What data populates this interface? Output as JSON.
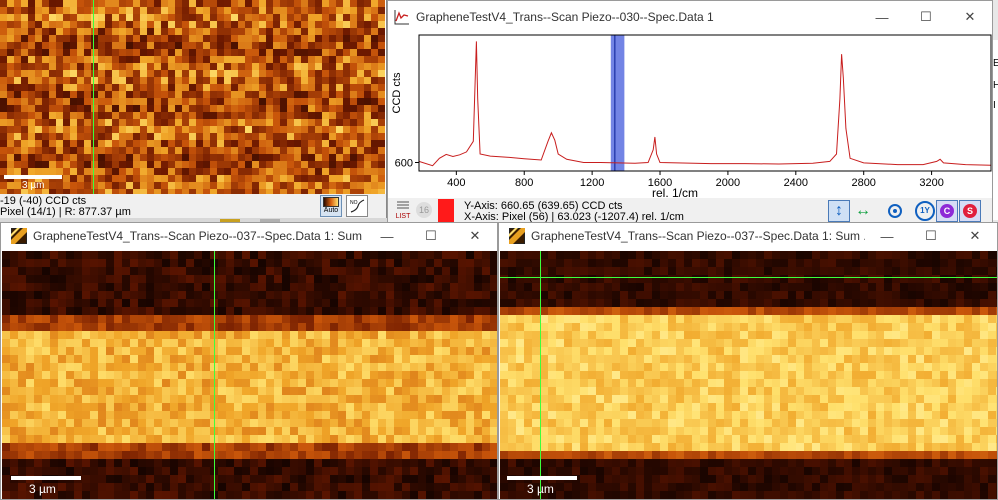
{
  "top_left": {
    "status_line1": "-19 (-40) CCD cts",
    "status_line2": "Pixel (14/1) | R: 877.37 µm",
    "scale_label": "3 µm",
    "auto_label": "Auto"
  },
  "spectrum_window": {
    "title": "GrapheneTestV4_Trans--Scan Piezo--030--Spec.Data 1",
    "btn_minimize": "—",
    "btn_maximize": "☐",
    "btn_close": "✕",
    "y_readout": "Y-Axis: 660.65 (639.65) CCD cts",
    "x_readout": "X-Axis: Pixel (56) | 63.023 (-1207.4) rel. 1/cm",
    "list_label": "LIST",
    "badge_16": "16",
    "btn_1y": "1Y",
    "btn_c": "C",
    "btn_s": "S",
    "colors": {
      "line": "#c81e1e",
      "highlight": "#5b6fe0",
      "marker": "#ff1a1a"
    }
  },
  "chart_data": {
    "type": "line",
    "title": "",
    "xlabel": "rel. 1/cm",
    "ylabel": "CCD cts",
    "xlim": [
      180,
      3550
    ],
    "ylim": [
      560,
      1200
    ],
    "xticks": [
      400,
      800,
      1200,
      1600,
      2000,
      2400,
      2800,
      3200
    ],
    "yticks": [
      600
    ],
    "highlight_band": [
      1310,
      1390
    ],
    "series": [
      {
        "name": "",
        "x": [
          180,
          260,
          300,
          340,
          380,
          420,
          460,
          500,
          510,
          518,
          526,
          540,
          600,
          700,
          800,
          900,
          940,
          960,
          980,
          1000,
          1050,
          1150,
          1250,
          1350,
          1450,
          1530,
          1560,
          1570,
          1580,
          1600,
          1700,
          1900,
          2100,
          2300,
          2500,
          2600,
          2640,
          2660,
          2670,
          2680,
          2695,
          2720,
          2800,
          3000,
          3150,
          3230,
          3250,
          3270,
          3400,
          3550
        ],
        "y": [
          605,
          585,
          620,
          638,
          628,
          636,
          650,
          700,
          960,
          1170,
          900,
          640,
          630,
          625,
          618,
          612,
          700,
          740,
          705,
          640,
          615,
          600,
          600,
          598,
          596,
          600,
          660,
          720,
          640,
          600,
          598,
          595,
          595,
          593,
          596,
          605,
          640,
          900,
          1110,
          1000,
          760,
          620,
          598,
          590,
          590,
          605,
          615,
          598,
          590,
          587
        ]
      }
    ]
  },
  "bottom_left": {
    "title": "GrapheneTestV4_Trans--Scan Piezo--037--Spec.Data 1: Sum ...",
    "btn_minimize": "—",
    "btn_maximize": "☐",
    "btn_close": "✕",
    "scale_label": "3 µm"
  },
  "bottom_right": {
    "title": "GrapheneTestV4_Trans--Scan Piezo--037--Spec.Data 1: Sum ...",
    "btn_minimize": "—",
    "btn_maximize": "☐",
    "btn_close": "✕",
    "scale_label": "3 µm"
  },
  "background": {
    "right_edge_letters": [
      "E",
      "H",
      "I"
    ]
  }
}
